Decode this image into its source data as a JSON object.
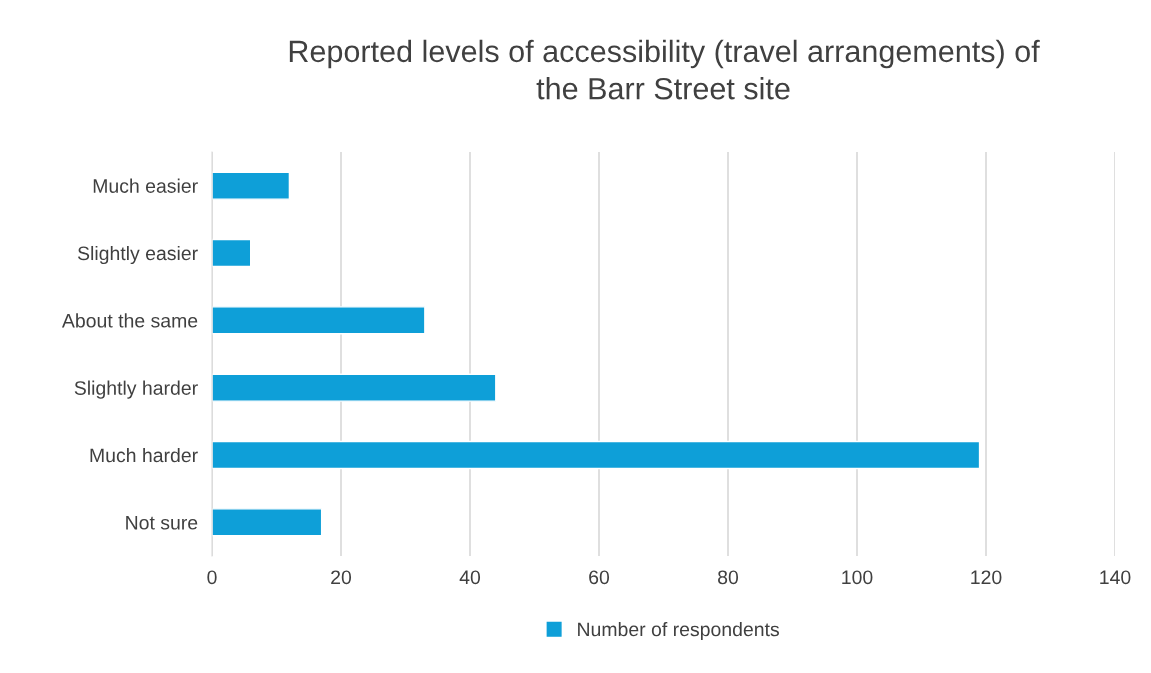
{
  "chart_data": {
    "type": "bar",
    "orientation": "horizontal",
    "title": "Reported levels of accessibility (travel arrangements) of\nthe Barr Street site",
    "categories": [
      "Much easier",
      "Slightly easier",
      "About the same",
      "Slightly harder",
      "Much harder",
      "Not sure"
    ],
    "series": [
      {
        "name": "Number of respondents",
        "color": "#0e9fd8",
        "values": [
          12,
          6,
          33,
          44,
          119,
          17
        ]
      }
    ],
    "xlim": [
      0,
      140
    ],
    "xticks": [
      0,
      20,
      40,
      60,
      80,
      100,
      120,
      140
    ],
    "grid": "x",
    "legend": "bottom"
  }
}
